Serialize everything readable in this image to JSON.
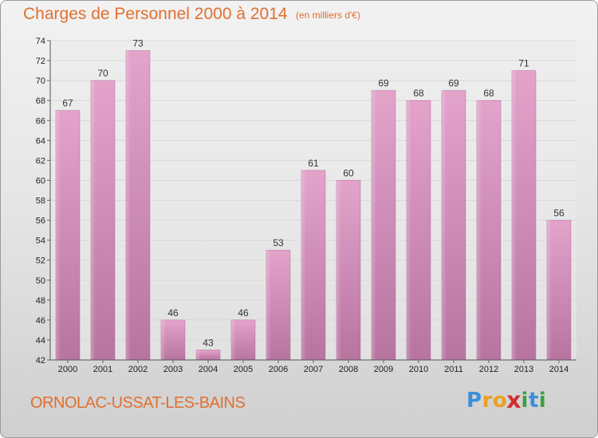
{
  "header": {
    "title": "Charges de Personnel 2000 à 2014",
    "subtitle": "(en milliers d'€)"
  },
  "footer": {
    "city": "ORNOLAC-USSAT-LES-BAINS",
    "brand_letters": [
      "P",
      "r",
      "o",
      "x",
      "i",
      "t",
      "i"
    ],
    "brand_colors": [
      "#3a8fd8",
      "#e8a020",
      "#e8a020",
      "#d03030",
      "#3aa040",
      "#3a8fd8",
      "#3aa040"
    ]
  },
  "chart_data": {
    "type": "bar",
    "title": "Charges de Personnel 2000 à 2014",
    "subtitle": "(en milliers d'€)",
    "categories": [
      "2000",
      "2001",
      "2002",
      "2003",
      "2004",
      "2005",
      "2006",
      "2007",
      "2008",
      "2009",
      "2010",
      "2011",
      "2012",
      "2013",
      "2014"
    ],
    "values": [
      67,
      70,
      73,
      46,
      43,
      46,
      53,
      61,
      60,
      69,
      68,
      69,
      68,
      71,
      56
    ],
    "ylim": [
      42,
      74
    ],
    "yticks": [
      42,
      44,
      46,
      48,
      50,
      52,
      54,
      56,
      58,
      60,
      62,
      64,
      66,
      68,
      70,
      72,
      74
    ],
    "grid": true,
    "bar_color": "#cc78a8"
  }
}
